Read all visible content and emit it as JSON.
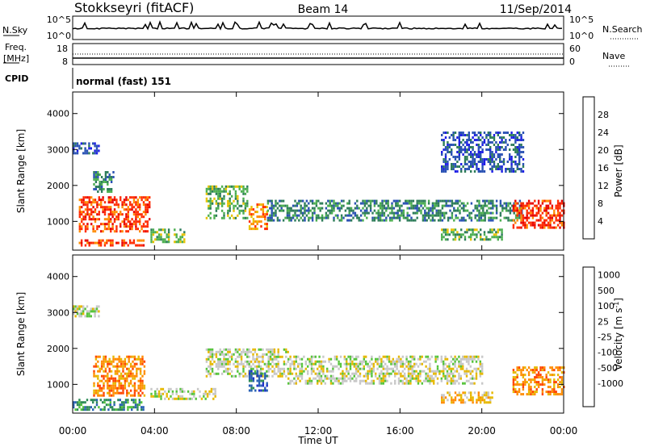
{
  "header": {
    "station": "Stokkseyri (fitACF)",
    "beam": "Beam 14",
    "date": "11/Sep/2014"
  },
  "status_panels": {
    "nsky_label": "N.Sky",
    "nsearch_label": "N.Search",
    "noise_ticks_left": [
      "10^5",
      "10^0"
    ],
    "noise_ticks_right": [
      "10^5",
      "10^0"
    ],
    "freq_label": "Freq.",
    "freq_unit": "[MHz]",
    "freq_ticks": [
      "18",
      "8"
    ],
    "nave_label": "Nave",
    "nave_ticks": [
      "60",
      "0"
    ],
    "cpid_label": "CPID",
    "cpid_value": "normal (fast) 151"
  },
  "axes": {
    "xlabel": "Time UT",
    "x_ticks": [
      "00:00",
      "04:00",
      "08:00",
      "12:00",
      "16:00",
      "20:00",
      "00:00"
    ],
    "ylabel": "Slant Range [km]",
    "y_ticks": [
      "1000",
      "2000",
      "3000",
      "4000"
    ]
  },
  "chart_data": [
    {
      "type": "heatmap",
      "parameter": "Power",
      "colorbar_label": "Power [dB]",
      "colorbar_ticks": [
        "4",
        "8",
        "12",
        "16",
        "20",
        "24",
        "28"
      ],
      "colors": [
        "#1e1ee6",
        "#2a52b4",
        "#2e7d5a",
        "#4caf50",
        "#e8c200",
        "#ff8c00",
        "#ff2b00",
        "#e60000"
      ],
      "xlim": [
        "00:00",
        "24:00"
      ],
      "ylim": [
        200,
        4600
      ],
      "echo_regions": [
        {
          "t_start": 0.0,
          "t_end": 1.3,
          "range_min": 2900,
          "range_max": 3200,
          "level": 1
        },
        {
          "t_start": 1.0,
          "t_end": 2.0,
          "range_min": 1800,
          "range_max": 2400,
          "level": 2
        },
        {
          "t_start": 0.3,
          "t_end": 3.8,
          "range_min": 700,
          "range_max": 1700,
          "level": 6
        },
        {
          "t_start": 0.2,
          "t_end": 3.5,
          "range_min": 300,
          "range_max": 500,
          "level": 6
        },
        {
          "t_start": 3.8,
          "t_end": 5.5,
          "range_min": 400,
          "range_max": 800,
          "level": 3
        },
        {
          "t_start": 6.5,
          "t_end": 8.5,
          "range_min": 1100,
          "range_max": 2000,
          "level": 3
        },
        {
          "t_start": 8.6,
          "t_end": 9.5,
          "range_min": 800,
          "range_max": 1500,
          "level": 5
        },
        {
          "t_start": 9.5,
          "t_end": 22.0,
          "range_min": 1000,
          "range_max": 1600,
          "level": 2
        },
        {
          "t_start": 18.0,
          "t_end": 21.0,
          "range_min": 500,
          "range_max": 800,
          "level": 3
        },
        {
          "t_start": 18.0,
          "t_end": 22.0,
          "range_min": 2400,
          "range_max": 3500,
          "level": 1
        },
        {
          "t_start": 21.5,
          "t_end": 24.0,
          "range_min": 800,
          "range_max": 1600,
          "level": 6
        }
      ]
    },
    {
      "type": "heatmap",
      "parameter": "Velocity",
      "colorbar_label": "Velocity [m s^-1]",
      "colorbar_ticks": [
        "1000",
        "500",
        "100",
        "25",
        "-25",
        "-100",
        "-500",
        "-1000"
      ],
      "colors": [
        "#1e32c8",
        "#2a62b4",
        "#2e8b57",
        "#56c43c",
        "#c8c8c8",
        "#e6b800",
        "#ff8c00",
        "#ff4500",
        "#e60000"
      ],
      "xlim": [
        "00:00",
        "24:00"
      ],
      "ylim": [
        200,
        4600
      ],
      "echo_regions": [
        {
          "t_start": 0.0,
          "t_end": 1.3,
          "range_min": 2900,
          "range_max": 3200,
          "level": 4
        },
        {
          "t_start": 1.0,
          "t_end": 3.5,
          "range_min": 700,
          "range_max": 1800,
          "level": 6
        },
        {
          "t_start": 0.0,
          "t_end": 3.5,
          "range_min": 300,
          "range_max": 600,
          "level": 2
        },
        {
          "t_start": 3.8,
          "t_end": 7.0,
          "range_min": 600,
          "range_max": 900,
          "level": 4
        },
        {
          "t_start": 6.5,
          "t_end": 10.5,
          "range_min": 1200,
          "range_max": 2000,
          "level": 4
        },
        {
          "t_start": 8.6,
          "t_end": 9.5,
          "range_min": 800,
          "range_max": 1400,
          "level": 1
        },
        {
          "t_start": 10.5,
          "t_end": 20.0,
          "range_min": 1000,
          "range_max": 1800,
          "level": 4
        },
        {
          "t_start": 18.0,
          "t_end": 20.5,
          "range_min": 500,
          "range_max": 800,
          "level": 5
        },
        {
          "t_start": 21.5,
          "t_end": 24.0,
          "range_min": 700,
          "range_max": 1500,
          "level": 6
        }
      ]
    }
  ]
}
